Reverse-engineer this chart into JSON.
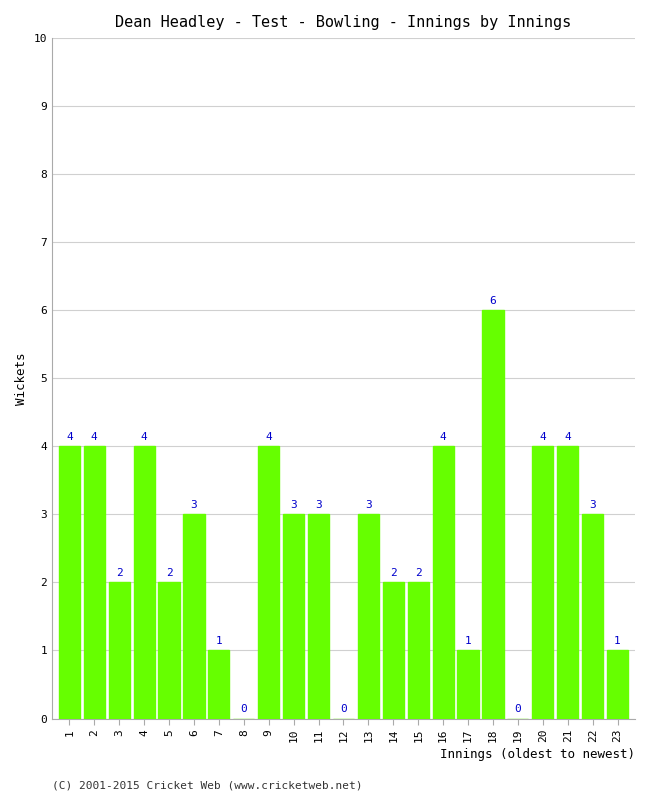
{
  "title": "Dean Headley - Test - Bowling - Innings by Innings",
  "xlabel": "Innings (oldest to newest)",
  "ylabel": "Wickets",
  "innings": [
    1,
    2,
    3,
    4,
    5,
    6,
    7,
    8,
    9,
    10,
    11,
    12,
    13,
    14,
    15,
    16,
    17,
    18,
    19,
    20,
    21,
    22,
    23
  ],
  "wickets": [
    4,
    4,
    2,
    4,
    2,
    3,
    1,
    0,
    4,
    3,
    3,
    0,
    3,
    2,
    2,
    4,
    1,
    6,
    0,
    4,
    4,
    3,
    1
  ],
  "bar_color": "#66ff00",
  "label_color": "#0000cc",
  "ylim": [
    0,
    10
  ],
  "yticks": [
    0,
    1,
    2,
    3,
    4,
    5,
    6,
    7,
    8,
    9,
    10
  ],
  "title_fontsize": 11,
  "axis_label_fontsize": 9,
  "tick_fontsize": 8,
  "bar_label_fontsize": 8,
  "footer_text": "(C) 2001-2015 Cricket Web (www.cricketweb.net)",
  "footer_fontsize": 8,
  "background_color": "#ffffff",
  "grid_color": "#d0d0d0"
}
